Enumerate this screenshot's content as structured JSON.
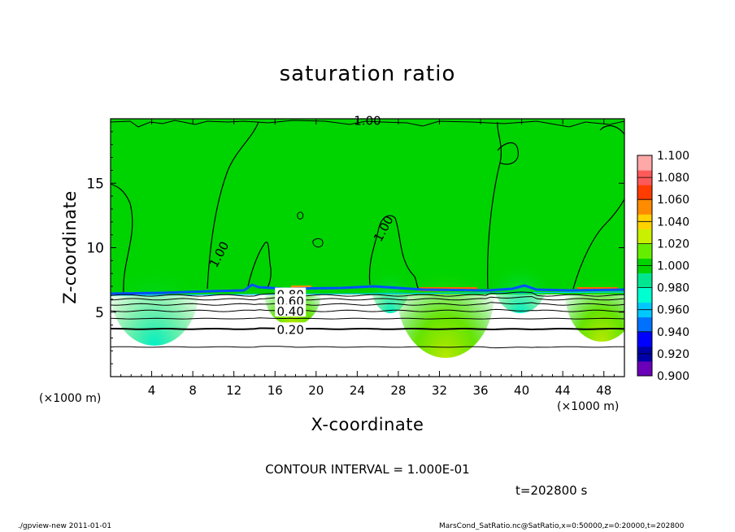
{
  "title": "saturation ratio",
  "x_label": "X-coordinate",
  "y_label": "Z-coordinate",
  "x_unit_left": "(×1000 m)",
  "x_unit_right": "(×1000 m)",
  "contour_interval": "CONTOUR INTERVAL = 1.000E-01",
  "time_label": "t=202800 s",
  "footer_left": "./gpview-new  2011-01-01",
  "footer_right": "MarsCond_SatRatio.nc@SatRatio,x=0:50000,z=0:20000,t=202800",
  "colors": {
    "field_main": "#00d400",
    "colorbar": [
      "#6a00b8",
      "#0000a8",
      "#0000ff",
      "#0070ff",
      "#00c8ff",
      "#00ffd0",
      "#00e690",
      "#00d400",
      "#66ee00",
      "#c8f000",
      "#ffd200",
      "#ff8c00",
      "#ff3c00",
      "#ff5a5a",
      "#ffa8a8"
    ]
  },
  "chart_data": {
    "type": "heatmap",
    "title": "saturation ratio",
    "xlabel": "X-coordinate",
    "ylabel": "Z-coordinate",
    "xlim": [
      0,
      50
    ],
    "ylim": [
      0,
      20
    ],
    "x_ticks": [
      4,
      8,
      12,
      16,
      20,
      24,
      28,
      32,
      36,
      40,
      44,
      48
    ],
    "y_ticks": [
      5,
      10,
      15
    ],
    "colorbar": {
      "levels": [
        "1.100",
        "1.080",
        "1.060",
        "1.040",
        "1.020",
        "1.000",
        "0.980",
        "0.960",
        "0.940",
        "0.920",
        "0.900"
      ],
      "range": [
        0.9,
        1.1
      ]
    },
    "contour_interval": 0.1,
    "contour_labels": [
      {
        "text": "1.00",
        "x": 25,
        "z": 19.9
      },
      {
        "text": "1.00",
        "x": 10.5,
        "z": 9.5
      },
      {
        "text": "1.00",
        "x": 26.5,
        "z": 11.5
      },
      {
        "text": "0.80",
        "x": 17.5,
        "z": 6.4
      },
      {
        "text": "0.60",
        "x": 17.5,
        "z": 5.9
      },
      {
        "text": "0.40",
        "x": 17.5,
        "z": 5.1
      },
      {
        "text": "0.20",
        "x": 17.5,
        "z": 3.7
      }
    ],
    "contour_lines_z": [
      2.3,
      3.7,
      4.5,
      5.1,
      5.6,
      6.0,
      6.3
    ],
    "saturated_layer_bottom_z": 6.5
  }
}
